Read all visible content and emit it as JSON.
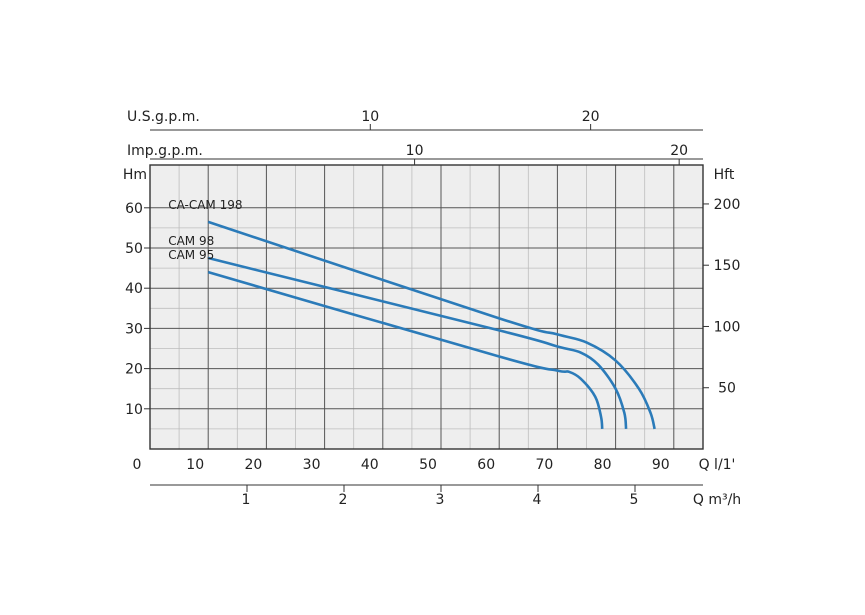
{
  "chart_data": {
    "type": "line",
    "title": "",
    "x": {
      "label": "Q l/1'",
      "range": [
        0,
        100
      ],
      "ticks": [
        0,
        10,
        20,
        30,
        40,
        50,
        60,
        70,
        80,
        90
      ]
    },
    "y_left": {
      "label": "Hm",
      "range": [
        0,
        64
      ],
      "ticks": [
        10,
        20,
        30,
        40,
        50,
        60
      ]
    },
    "y_right": {
      "label": "Hft",
      "ticks": [
        50,
        100,
        150,
        200
      ]
    },
    "x_bottom_secondary": {
      "label": "Q m³/h",
      "ticks": [
        1,
        2,
        3,
        4,
        5
      ]
    },
    "x_top_usgpm": {
      "label": "U.S.g.p.m.",
      "ticks": [
        10,
        20
      ]
    },
    "x_top_impgpm": {
      "label": "Imp.g.p.m.",
      "ticks": [
        10,
        20
      ]
    },
    "grid": true,
    "series": [
      {
        "name": "CA-CAM 198",
        "color": "#2b7bb9",
        "points": [
          [
            10,
            56.5
          ],
          [
            60,
            32.5
          ],
          [
            70,
            28.5
          ],
          [
            75,
            26.5
          ],
          [
            80,
            22
          ],
          [
            84,
            15
          ],
          [
            86,
            9
          ],
          [
            86.7,
            5
          ]
        ]
      },
      {
        "name": "CAM 98",
        "color": "#2b7bb9",
        "points": [
          [
            10,
            47.5
          ],
          [
            60,
            29.5
          ],
          [
            70,
            25.5
          ],
          [
            74,
            24
          ],
          [
            77,
            21
          ],
          [
            80,
            15
          ],
          [
            81.5,
            9
          ],
          [
            81.8,
            5
          ]
        ]
      },
      {
        "name": "CAM 95",
        "color": "#2b7bb9",
        "points": [
          [
            10,
            44
          ],
          [
            60,
            23
          ],
          [
            70,
            19.5
          ],
          [
            72,
            19.2
          ],
          [
            74,
            17.5
          ],
          [
            76.5,
            13
          ],
          [
            77.5,
            8
          ],
          [
            77.7,
            5
          ]
        ]
      }
    ]
  }
}
